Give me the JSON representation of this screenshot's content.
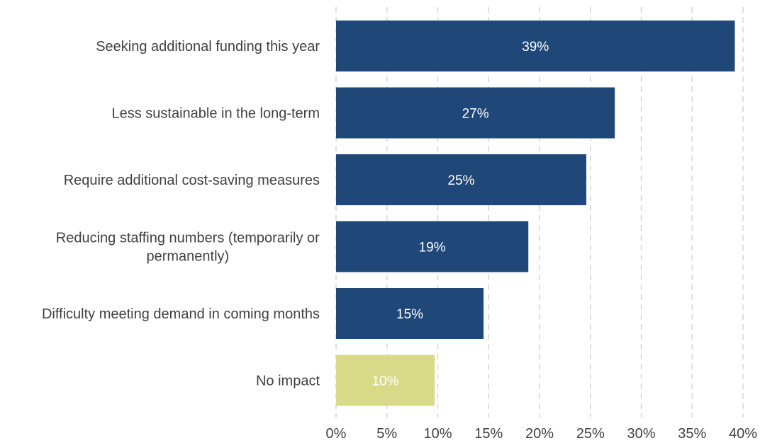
{
  "chart_data": {
    "type": "bar",
    "orientation": "horizontal",
    "title": "",
    "xlabel": "",
    "ylabel": "",
    "xlim": [
      0,
      40
    ],
    "grid": "vertical dashed",
    "categories": [
      "Seeking additional funding this year",
      "Less sustainable in the long-term",
      "Require additional cost-saving measures",
      "Reducing staffing numbers (temporarily or permanently)",
      "Difficulty meeting demand in coming months",
      "No impact"
    ],
    "category_lines": [
      [
        "Seeking additional funding this year"
      ],
      [
        "Less sustainable in the long-term"
      ],
      [
        "Require additional cost-saving measures"
      ],
      [
        "Reducing staffing numbers (temporarily or",
        "permanently)"
      ],
      [
        "Difficulty meeting demand in coming months"
      ],
      [
        "No impact"
      ]
    ],
    "values": [
      39.2,
      27.4,
      24.6,
      18.9,
      14.5,
      9.7
    ],
    "data_labels": [
      "39%",
      "27%",
      "25%",
      "19%",
      "15%",
      "10%"
    ],
    "x_ticks": [
      0,
      5,
      10,
      15,
      20,
      25,
      30,
      35,
      40
    ],
    "x_tick_labels": [
      "0%",
      "5%",
      "10%",
      "15%",
      "20%",
      "25%",
      "30%",
      "35%",
      "40%"
    ],
    "colors": {
      "default": "#1f4778",
      "highlight": "#d9da88",
      "highlight_category": "No impact"
    }
  }
}
